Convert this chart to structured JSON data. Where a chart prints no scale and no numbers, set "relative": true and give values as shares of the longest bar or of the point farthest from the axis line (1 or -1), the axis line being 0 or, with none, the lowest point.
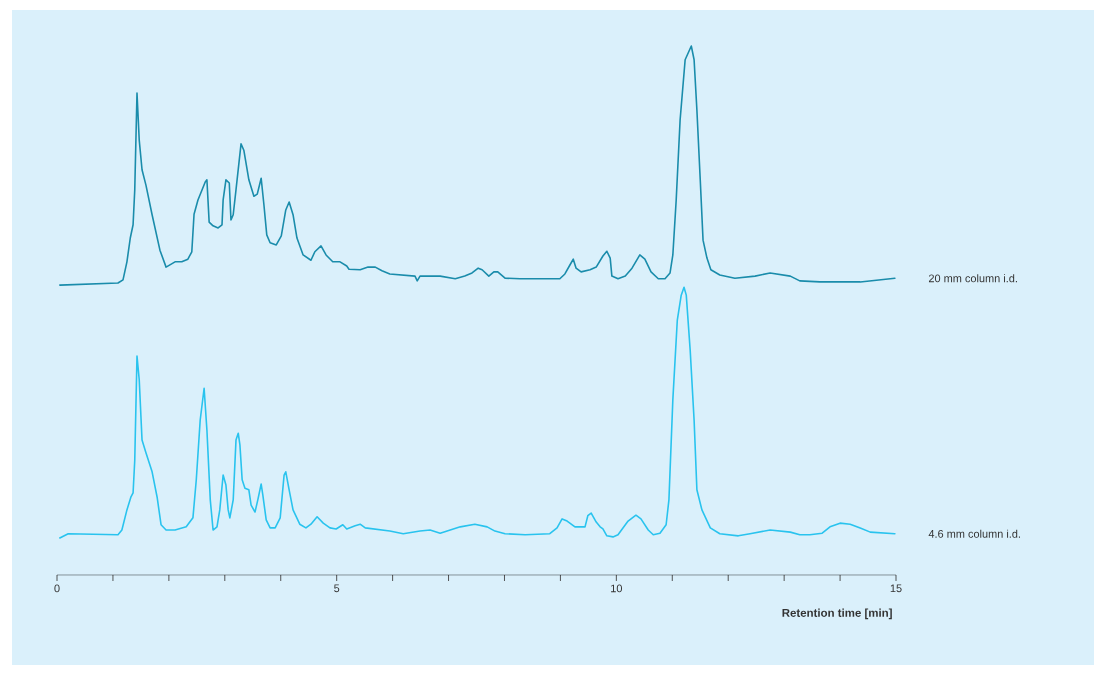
{
  "chart_data": {
    "type": "line",
    "relative": true,
    "xlabel": "Retention time [min]",
    "xlim": [
      0,
      15
    ],
    "xticks": [
      0,
      {
        "value": 1,
        "label": null
      },
      {
        "value": 2,
        "label": null
      },
      {
        "value": 3,
        "label": null
      },
      {
        "value": 4,
        "label": null
      },
      5,
      {
        "value": 6,
        "label": null
      },
      {
        "value": 7,
        "label": null
      },
      {
        "value": 8,
        "label": null
      },
      {
        "value": 9,
        "label": null
      },
      10,
      {
        "value": 11,
        "label": null
      },
      {
        "value": 12,
        "label": null
      },
      {
        "value": 13,
        "label": null
      },
      {
        "value": 14,
        "label": null
      },
      15
    ],
    "series": [
      {
        "name": "20 mm column i.d.",
        "color": "#1a8cab",
        "x": [
          0.05,
          1.09,
          1.18,
          1.25,
          1.31,
          1.36,
          1.39,
          1.43,
          1.47,
          1.52,
          1.59,
          1.7,
          1.84,
          1.95,
          2.11,
          2.23,
          2.34,
          2.41,
          2.45,
          2.52,
          2.65,
          2.68,
          2.72,
          2.79,
          2.88,
          2.95,
          2.97,
          3.02,
          3.08,
          3.11,
          3.15,
          3.2,
          3.29,
          3.34,
          3.43,
          3.52,
          3.58,
          3.65,
          3.7,
          3.75,
          3.81,
          3.92,
          4.01,
          4.09,
          4.15,
          4.22,
          4.29,
          4.4,
          4.54,
          4.61,
          4.72,
          4.81,
          4.93,
          5.06,
          5.18,
          5.22,
          5.42,
          5.56,
          5.69,
          5.81,
          5.95,
          6.4,
          6.44,
          6.49,
          6.85,
          7.12,
          7.29,
          7.42,
          7.53,
          7.6,
          7.72,
          7.81,
          7.88,
          8.01,
          8.28,
          8.99,
          9.08,
          9.17,
          9.23,
          9.28,
          9.37,
          9.53,
          9.64,
          9.76,
          9.83,
          9.89,
          9.92,
          10.03,
          10.16,
          10.28,
          10.42,
          10.51,
          10.62,
          10.75,
          10.87,
          10.96,
          11.01,
          11.07,
          11.14,
          11.23,
          11.34,
          11.39,
          11.44,
          11.5,
          11.55,
          11.62,
          11.69,
          11.85,
          12.12,
          12.48,
          12.75,
          13.11,
          13.28,
          13.64,
          14.36,
          14.98
        ],
        "values": [
          0.548,
          0.552,
          0.558,
          0.592,
          0.637,
          0.662,
          0.728,
          0.911,
          0.822,
          0.766,
          0.737,
          0.681,
          0.614,
          0.582,
          0.592,
          0.592,
          0.597,
          0.611,
          0.682,
          0.709,
          0.743,
          0.747,
          0.667,
          0.66,
          0.656,
          0.662,
          0.709,
          0.747,
          0.741,
          0.671,
          0.681,
          0.728,
          0.815,
          0.803,
          0.747,
          0.716,
          0.72,
          0.75,
          0.699,
          0.643,
          0.628,
          0.624,
          0.641,
          0.69,
          0.705,
          0.681,
          0.637,
          0.605,
          0.595,
          0.611,
          0.622,
          0.605,
          0.592,
          0.592,
          0.584,
          0.578,
          0.577,
          0.582,
          0.582,
          0.575,
          0.569,
          0.565,
          0.556,
          0.565,
          0.565,
          0.56,
          0.565,
          0.571,
          0.58,
          0.577,
          0.565,
          0.573,
          0.573,
          0.561,
          0.56,
          0.56,
          0.569,
          0.586,
          0.597,
          0.58,
          0.573,
          0.577,
          0.582,
          0.603,
          0.612,
          0.599,
          0.565,
          0.56,
          0.565,
          0.58,
          0.605,
          0.597,
          0.573,
          0.56,
          0.56,
          0.571,
          0.605,
          0.709,
          0.86,
          0.974,
          1.0,
          0.974,
          0.879,
          0.747,
          0.633,
          0.599,
          0.577,
          0.567,
          0.561,
          0.565,
          0.571,
          0.565,
          0.556,
          0.554,
          0.554,
          0.561
        ]
      },
      {
        "name": "4.6 mm column i.d.",
        "color": "#29c3ee",
        "x": [
          0.05,
          0.2,
          1.09,
          1.16,
          1.25,
          1.32,
          1.36,
          1.39,
          1.43,
          1.47,
          1.52,
          1.59,
          1.7,
          1.79,
          1.86,
          1.95,
          2.11,
          2.31,
          2.43,
          2.49,
          2.56,
          2.63,
          2.68,
          2.74,
          2.79,
          2.86,
          2.91,
          2.97,
          3.02,
          3.06,
          3.09,
          3.15,
          3.2,
          3.24,
          3.27,
          3.31,
          3.36,
          3.43,
          3.47,
          3.54,
          3.59,
          3.65,
          3.68,
          3.74,
          3.81,
          3.9,
          3.99,
          4.06,
          4.09,
          4.15,
          4.22,
          4.34,
          4.45,
          4.54,
          4.65,
          4.76,
          4.88,
          4.99,
          5.11,
          5.18,
          5.33,
          5.42,
          5.51,
          5.95,
          6.19,
          6.49,
          6.67,
          6.85,
          7.21,
          7.47,
          7.69,
          7.83,
          8.01,
          8.37,
          8.81,
          8.94,
          9.03,
          9.12,
          9.26,
          9.44,
          9.49,
          9.55,
          9.64,
          9.71,
          9.76,
          9.83,
          9.94,
          10.03,
          10.21,
          10.35,
          10.44,
          10.57,
          10.66,
          10.78,
          10.89,
          10.94,
          11.01,
          11.09,
          11.16,
          11.21,
          11.25,
          11.32,
          11.39,
          11.44,
          11.53,
          11.68,
          11.85,
          12.18,
          12.39,
          12.75,
          13.11,
          13.28,
          13.46,
          13.68,
          13.82,
          14.0,
          14.18,
          14.36,
          14.54,
          14.98
        ],
        "values": [
          0.07,
          0.078,
          0.076,
          0.085,
          0.123,
          0.147,
          0.155,
          0.217,
          0.414,
          0.369,
          0.255,
          0.231,
          0.195,
          0.147,
          0.095,
          0.085,
          0.085,
          0.091,
          0.108,
          0.18,
          0.293,
          0.353,
          0.274,
          0.142,
          0.085,
          0.091,
          0.123,
          0.189,
          0.17,
          0.123,
          0.108,
          0.142,
          0.255,
          0.268,
          0.246,
          0.18,
          0.164,
          0.161,
          0.132,
          0.119,
          0.142,
          0.172,
          0.151,
          0.104,
          0.089,
          0.089,
          0.108,
          0.189,
          0.195,
          0.161,
          0.123,
          0.096,
          0.089,
          0.096,
          0.11,
          0.098,
          0.089,
          0.087,
          0.095,
          0.087,
          0.093,
          0.096,
          0.089,
          0.083,
          0.078,
          0.083,
          0.085,
          0.079,
          0.091,
          0.096,
          0.091,
          0.083,
          0.078,
          0.076,
          0.078,
          0.089,
          0.106,
          0.102,
          0.091,
          0.091,
          0.112,
          0.117,
          0.1,
          0.091,
          0.087,
          0.074,
          0.072,
          0.076,
          0.102,
          0.113,
          0.106,
          0.085,
          0.076,
          0.079,
          0.095,
          0.142,
          0.331,
          0.482,
          0.529,
          0.544,
          0.529,
          0.425,
          0.293,
          0.161,
          0.123,
          0.089,
          0.078,
          0.074,
          0.078,
          0.085,
          0.081,
          0.076,
          0.076,
          0.079,
          0.091,
          0.098,
          0.096,
          0.089,
          0.081,
          0.078
        ]
      }
    ]
  }
}
